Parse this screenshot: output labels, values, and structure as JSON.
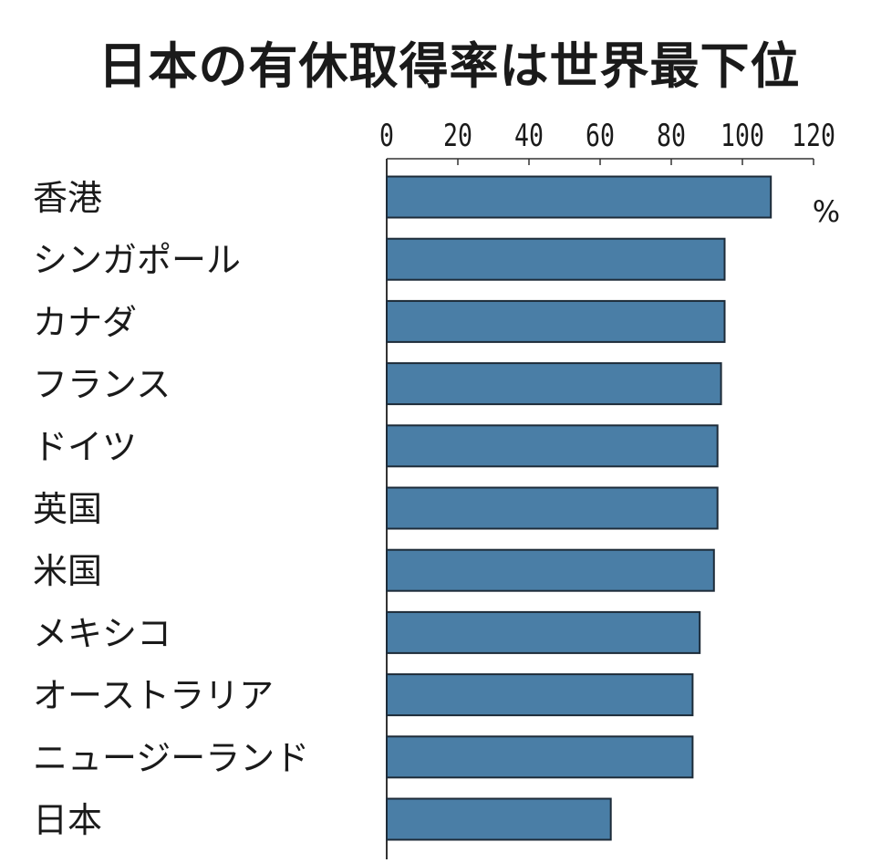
{
  "chart_data": {
    "type": "bar",
    "orientation": "horizontal",
    "title": "日本の有休取得率は世界最下位",
    "unit": "%",
    "categories": [
      "香港",
      "シンガポール",
      "カナダ",
      "フランス",
      "ドイツ",
      "英国",
      "米国",
      "メキシコ",
      "オーストラリア",
      "ニュージーランド",
      "日本"
    ],
    "values": [
      108,
      95,
      95,
      94,
      93,
      93,
      92,
      88,
      86,
      86,
      63
    ],
    "xlim": [
      0,
      120
    ],
    "xticks": [
      "0",
      "20",
      "40",
      "60",
      "80",
      "100",
      "120"
    ],
    "grid": false,
    "colors": {
      "bar": "#4a7ea6",
      "bar_edge": "#1d2b38",
      "text": "#1a1a1a",
      "axis": "#333333"
    }
  }
}
